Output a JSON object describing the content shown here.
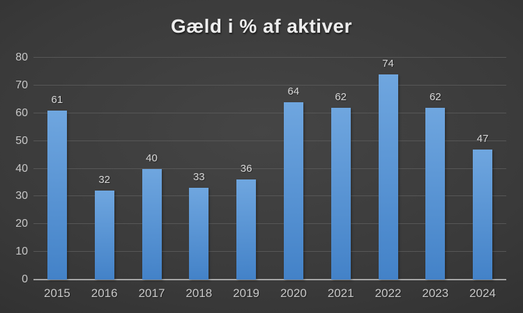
{
  "chart_data": {
    "type": "bar",
    "title": "Gæld i % af aktiver",
    "categories": [
      "2015",
      "2016",
      "2017",
      "2018",
      "2019",
      "2020",
      "2021",
      "2022",
      "2023",
      "2024"
    ],
    "values": [
      61,
      32,
      40,
      33,
      36,
      64,
      62,
      74,
      62,
      47
    ],
    "xlabel": "",
    "ylabel": "",
    "ylim": [
      0,
      80
    ],
    "ytick_step": 10,
    "ytick_labels": [
      "0",
      "10",
      "20",
      "30",
      "40",
      "50",
      "60",
      "70",
      "80"
    ],
    "grid": true,
    "legend": "none",
    "data_labels_shown": true,
    "colors": {
      "bar_top": "#6FA6DF",
      "bar_bottom": "#4382C8",
      "gridline": "#575757",
      "axis_line": "#A6A6A6",
      "tick_label": "#C8C8C8",
      "data_label": "#D9D9D9",
      "title": "#EDEDED",
      "background_center": "#454545",
      "background_edge": "#262626"
    }
  }
}
